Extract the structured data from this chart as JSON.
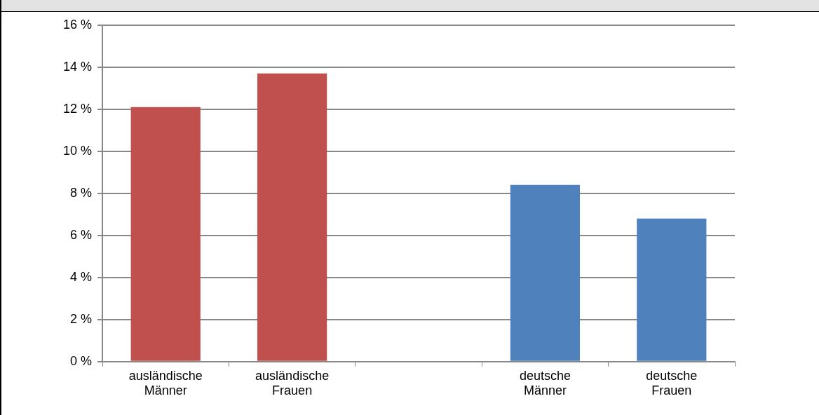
{
  "chart_data": {
    "type": "bar",
    "categories": [
      "ausländische Männer",
      "ausländische Frauen",
      null,
      "deutsche Männer",
      "deutsche Frauen"
    ],
    "values": [
      12.1,
      13.7,
      null,
      8.4,
      6.8
    ],
    "colors": [
      "#c0504d",
      "#c0504d",
      null,
      "#4f81bd",
      "#4f81bd"
    ],
    "ylim": [
      0,
      16
    ],
    "yticks": [
      {
        "value": 0,
        "label": "0 %"
      },
      {
        "value": 2,
        "label": "2 %"
      },
      {
        "value": 4,
        "label": "4 %"
      },
      {
        "value": 6,
        "label": "6 %"
      },
      {
        "value": 8,
        "label": "8 %"
      },
      {
        "value": 10,
        "label": "10 %"
      },
      {
        "value": 12,
        "label": "12 %"
      },
      {
        "value": 14,
        "label": "14 %"
      },
      {
        "value": 16,
        "label": "16 %"
      }
    ],
    "grid": "y",
    "legend": false
  }
}
